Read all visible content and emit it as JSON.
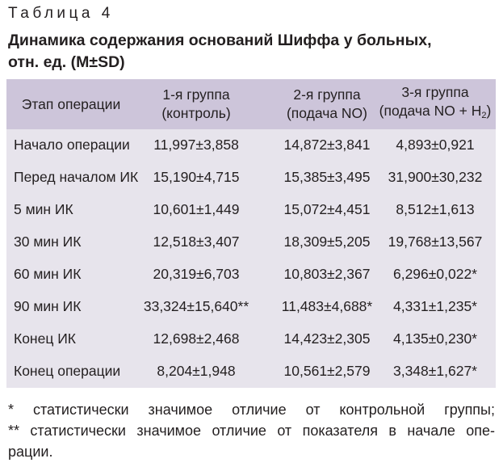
{
  "caption": "Таблица 4",
  "title_line1": "Динамика содержания оснований Шиффа у больных,",
  "title_line2": "отн. ед. (M±SD)",
  "header": {
    "stage": "Этап операции",
    "g1_line1": "1-я группа",
    "g1_line2": "(контроль)",
    "g2_line1": "2-я группа",
    "g2_line2": "(подача NO)",
    "g3_line1": "3-я группа",
    "g3_line2_pre": "(подача NO + H",
    "g3_line2_sub": "2",
    "g3_line2_post": ")"
  },
  "rows": [
    {
      "stage": "Начало операции",
      "g1": "11,997±3,858",
      "g2": "14,872±3,841",
      "g3": "4,893±0,921"
    },
    {
      "stage": "Перед началом ИК",
      "g1": "15,190±4,715",
      "g2": "15,385±3,495",
      "g3": "31,900±30,232"
    },
    {
      "stage": "5 мин ИК",
      "g1": "10,601±1,449",
      "g2": "15,072±4,451",
      "g3": "8,512±1,613"
    },
    {
      "stage": "30 мин ИК",
      "g1": "12,518±3,407",
      "g2": "18,309±5,205",
      "g3": "19,768±13,567"
    },
    {
      "stage": "60 мин ИК",
      "g1": "20,319±6,703",
      "g2": "10,803±2,367",
      "g3": "6,296±0,022*"
    },
    {
      "stage": "90 мин ИК",
      "g1": "33,324±15,640**",
      "g2": "11,483±4,688*",
      "g3": "4,331±1,235*"
    },
    {
      "stage": "Конец ИК",
      "g1": "12,698±2,468",
      "g2": "14,423±2,305",
      "g3": "4,135±0,230*"
    },
    {
      "stage": "Конец операции",
      "g1": "8,204±1,948",
      "g2": "10,561±2,579",
      "g3": "3,348±1,627*"
    }
  ],
  "footnotes": {
    "note1": "* статистически значимое отличие от контрольной группы;",
    "note2_line1": "** статистически значимое отличие от показателя в начале опе-",
    "note2_line2": "рации."
  },
  "colors": {
    "header_bg": "#cdc5da",
    "row_bg": "#e7e4ec",
    "separator": "#ffffff",
    "text": "#231f20"
  }
}
